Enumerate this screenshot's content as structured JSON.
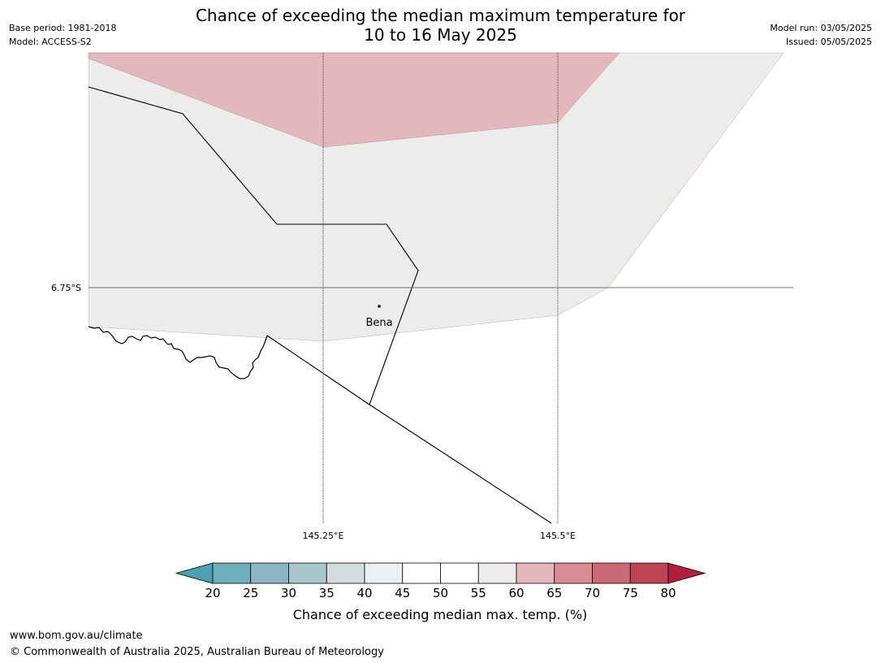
{
  "header": {
    "title_line1": "Chance of exceeding the median maximum temperature for",
    "title_line2": "10 to 16 May 2025",
    "base_period": "Base period: 1981-2018",
    "model": "Model: ACCESS-S2",
    "model_run": "Model run: 03/05/2025",
    "issued": "Issued: 05/05/2025"
  },
  "map": {
    "lat_label": "6.75°S",
    "lon_labels": [
      "145.25°E",
      "145.5°E"
    ],
    "place": {
      "name": "Bena"
    },
    "colors": {
      "band_60_65": "#e2b8be",
      "band_55_60": "#eeecea",
      "background": "#ffffff"
    }
  },
  "colorbar": {
    "ticks": [
      "20",
      "25",
      "30",
      "35",
      "40",
      "45",
      "50",
      "55",
      "60",
      "65",
      "70",
      "75",
      "80"
    ],
    "colors": [
      "#4e9fb0",
      "#6eadbc",
      "#8cb6c4",
      "#a9c6cc",
      "#d4dbdc",
      "#ebf1f2",
      "#ffffff",
      "#ffffff",
      "#eeecea",
      "#e2b8be",
      "#d78b93",
      "#cb6a75",
      "#c04255",
      "#b11d3d"
    ],
    "label": "Chance of exceeding median max. temp. (%)"
  },
  "footer": {
    "url": "www.bom.gov.au/climate",
    "copyright": "© Commonwealth of Australia 2025, Australian Bureau of Meteorology"
  }
}
